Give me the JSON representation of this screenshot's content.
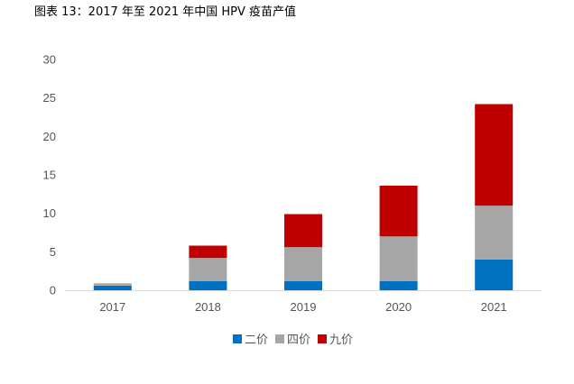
{
  "figure_title": "图表 13：2017 年至 2021 年中国 HPV 疫苗产值",
  "chart_data": {
    "type": "bar",
    "stacked": true,
    "categories": [
      "2017",
      "2018",
      "2019",
      "2020",
      "2021"
    ],
    "series": [
      {
        "name": "二价",
        "color": "#0070C0",
        "values": [
          0.6,
          1.2,
          1.2,
          1.2,
          4.0
        ]
      },
      {
        "name": "四价",
        "color": "#A6A6A6",
        "values": [
          0.3,
          3.0,
          4.4,
          5.8,
          7.0
        ]
      },
      {
        "name": "九价",
        "color": "#C00000",
        "values": [
          0.0,
          1.6,
          4.3,
          6.6,
          13.2
        ]
      }
    ],
    "yticks": [
      0,
      5,
      10,
      15,
      20,
      25,
      30
    ],
    "ylim": [
      0,
      30
    ],
    "legend_position": "bottom",
    "grid": false
  }
}
